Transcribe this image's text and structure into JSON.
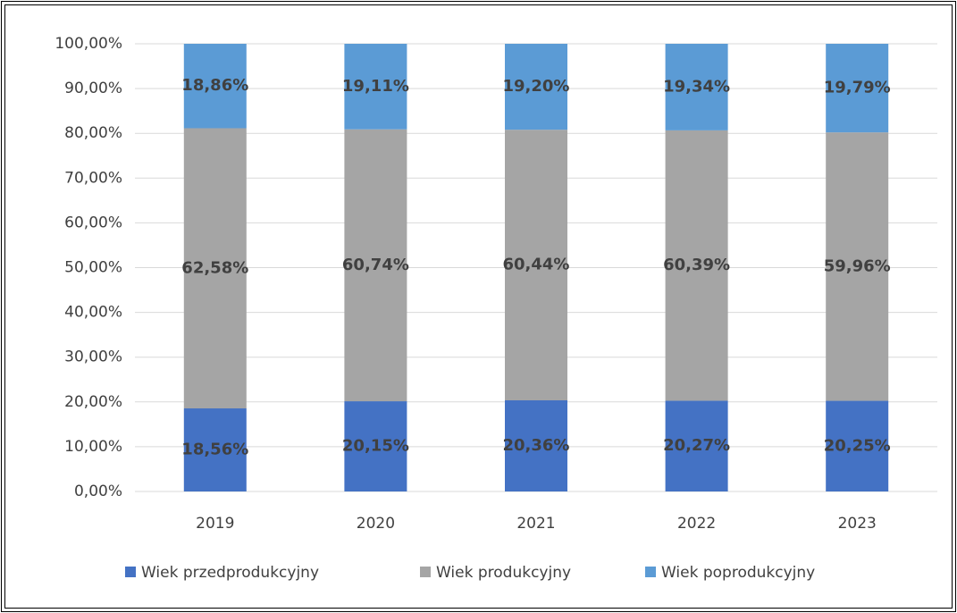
{
  "chart_data": {
    "type": "stacked_bar",
    "categories": [
      "2019",
      "2020",
      "2021",
      "2022",
      "2023"
    ],
    "series": [
      {
        "name": "Wiek przedprodukcyjny",
        "color": "#4472c4",
        "values": [
          18.56,
          20.15,
          20.36,
          20.27,
          20.25
        ],
        "value_labels": [
          "18,56%",
          "20,15%",
          "20,36%",
          "20,27%",
          "20,25%"
        ]
      },
      {
        "name": "Wiek produkcyjny",
        "color": "#a5a5a5",
        "values": [
          62.58,
          60.74,
          60.44,
          60.39,
          59.96
        ],
        "value_labels": [
          "62,58%",
          "60,74%",
          "60,44%",
          "60,39%",
          "59,96%"
        ]
      },
      {
        "name": "Wiek poprodukcyjny",
        "color": "#5b9bd5",
        "values": [
          18.86,
          19.11,
          19.2,
          19.34,
          19.79
        ],
        "value_labels": [
          "18,86%",
          "19,11%",
          "19,20%",
          "19,34%",
          "19,79%"
        ]
      }
    ],
    "ylim": [
      0,
      100
    ],
    "yticks": [
      {
        "value": 0,
        "label": "0,00%"
      },
      {
        "value": 10,
        "label": "10,00%"
      },
      {
        "value": 20,
        "label": "20,00%"
      },
      {
        "value": 30,
        "label": "30,00%"
      },
      {
        "value": 40,
        "label": "40,00%"
      },
      {
        "value": 50,
        "label": "50,00%"
      },
      {
        "value": 60,
        "label": "60,00%"
      },
      {
        "value": 70,
        "label": "70,00%"
      },
      {
        "value": 80,
        "label": "80,00%"
      },
      {
        "value": 90,
        "label": "90,00%"
      },
      {
        "value": 100,
        "label": "100,00%"
      }
    ],
    "grid": true,
    "legend": "bottom"
  }
}
